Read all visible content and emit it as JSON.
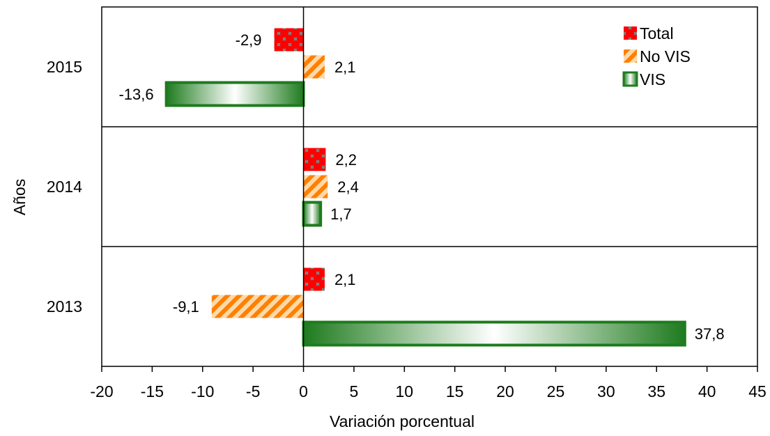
{
  "chart_data": {
    "type": "bar",
    "orientation": "horizontal",
    "categories": [
      "2015",
      "2014",
      "2013"
    ],
    "series": [
      {
        "name": "Total",
        "values": [
          -2.9,
          2.2,
          2.1
        ],
        "labels": [
          "-2,9",
          "2,2",
          "2,1"
        ],
        "color": "#ff0000",
        "pattern": "checker-red-gray"
      },
      {
        "name": "No VIS",
        "values": [
          2.1,
          2.4,
          -9.1
        ],
        "labels": [
          "2,1",
          "2,4",
          "-9,1"
        ],
        "color": "#ff8000",
        "pattern": "diagonal-orange-stripes"
      },
      {
        "name": "VIS",
        "values": [
          -13.6,
          1.7,
          37.8
        ],
        "labels": [
          "-13,6",
          "1,7",
          "37,8"
        ],
        "color": "#1e7b1e",
        "pattern": "green-white-gradient"
      }
    ],
    "xlabel": "Variación porcentual",
    "ylabel": "Años",
    "xlim": [
      -20,
      45
    ],
    "xticks": [
      -20,
      -15,
      -10,
      -5,
      0,
      5,
      10,
      15,
      20,
      25,
      30,
      35,
      40,
      45
    ],
    "xtick_labels": [
      "-20",
      "-15",
      "-10",
      "-5",
      "0",
      "5",
      "10",
      "15",
      "20",
      "25",
      "30",
      "35",
      "40",
      "45"
    ],
    "legend_position": "top-right",
    "grid": false
  }
}
